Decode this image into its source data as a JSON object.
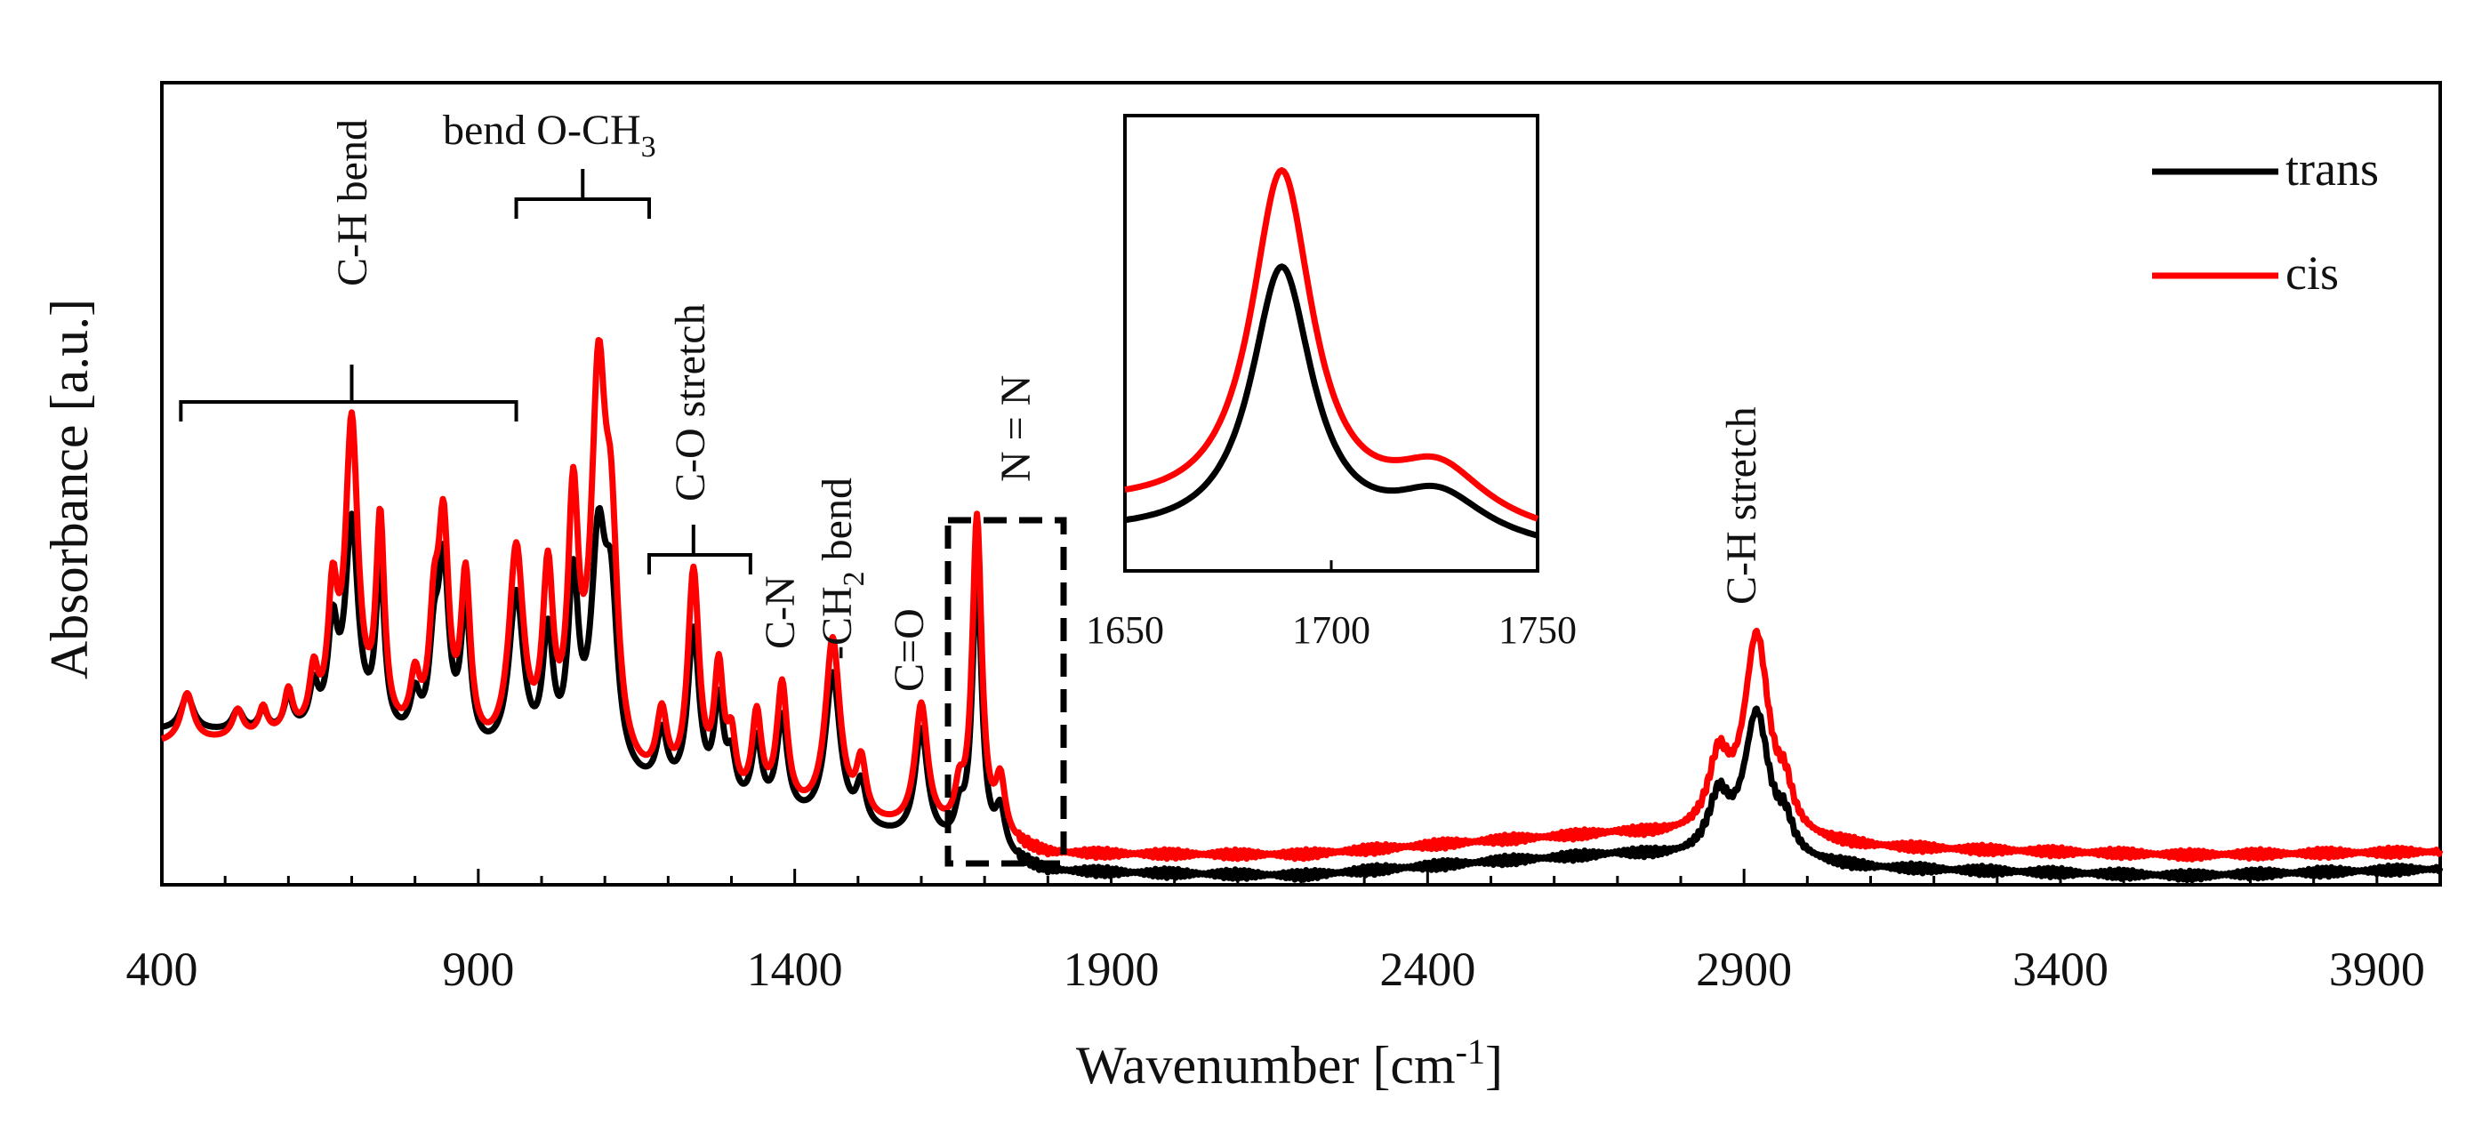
{
  "chart_data": {
    "type": "line",
    "xlabel": "Wavenumber [cm-1]",
    "xlabel_main": "Wavenumber [cm",
    "xlabel_sup": "-1",
    "xlabel_close": "]",
    "ylabel": "Absorbance [a.u.]",
    "xlim": [
      400,
      4000
    ],
    "ylim": [
      0,
      1
    ],
    "x_ticks": [
      400,
      900,
      1400,
      1900,
      2400,
      2900,
      3400,
      3900
    ],
    "x_tick_labels": [
      "400",
      "900",
      "1400",
      "1900",
      "2400",
      "2900",
      "3400",
      "3900"
    ],
    "legend": {
      "position": "top-right",
      "entries": [
        "trans",
        "cis"
      ]
    },
    "series": [
      {
        "name": "trans",
        "color": "#000000",
        "baseline": [
          [
            400,
            0.21
          ],
          [
            700,
            0.2
          ],
          [
            1300,
            0.09
          ],
          [
            1700,
            0.03
          ],
          [
            1800,
            0.005
          ],
          [
            2200,
            0.0
          ],
          [
            2500,
            0.02
          ],
          [
            2700,
            0.03
          ],
          [
            3100,
            0.01
          ],
          [
            3600,
            0.0
          ],
          [
            4000,
            0.01
          ]
        ],
        "peaks": [
          [
            440,
            0.05,
            12
          ],
          [
            520,
            0.03,
            10
          ],
          [
            560,
            0.03,
            8
          ],
          [
            600,
            0.05,
            8
          ],
          [
            640,
            0.06,
            8
          ],
          [
            670,
            0.14,
            9
          ],
          [
            700,
            0.3,
            12
          ],
          [
            745,
            0.24,
            8
          ],
          [
            800,
            0.06,
            9
          ],
          [
            830,
            0.12,
            9
          ],
          [
            845,
            0.25,
            10
          ],
          [
            880,
            0.2,
            9
          ],
          [
            960,
            0.24,
            14
          ],
          [
            1010,
            0.18,
            10
          ],
          [
            1050,
            0.26,
            10
          ],
          [
            1090,
            0.32,
            14
          ],
          [
            1110,
            0.22,
            12
          ],
          [
            1190,
            0.08,
            10
          ],
          [
            1240,
            0.24,
            11
          ],
          [
            1280,
            0.14,
            9
          ],
          [
            1300,
            0.06,
            8
          ],
          [
            1340,
            0.1,
            9
          ],
          [
            1380,
            0.14,
            10
          ],
          [
            1460,
            0.22,
            14
          ],
          [
            1505,
            0.06,
            9
          ],
          [
            1600,
            0.16,
            12
          ],
          [
            1660,
            0.04,
            8
          ],
          [
            1688,
            0.4,
            9
          ],
          [
            1725,
            0.06,
            9
          ],
          [
            2860,
            0.08,
            20
          ],
          [
            2920,
            0.21,
            24
          ],
          [
            2965,
            0.04,
            14
          ]
        ]
      },
      {
        "name": "cis",
        "color": "#ff0000",
        "baseline": [
          [
            400,
            0.19
          ],
          [
            700,
            0.2
          ],
          [
            1300,
            0.09
          ],
          [
            1700,
            0.05
          ],
          [
            1800,
            0.03
          ],
          [
            2200,
            0.03
          ],
          [
            2500,
            0.05
          ],
          [
            2700,
            0.06
          ],
          [
            3100,
            0.04
          ],
          [
            3600,
            0.03
          ],
          [
            4000,
            0.035
          ]
        ],
        "peaks": [
          [
            440,
            0.07,
            12
          ],
          [
            520,
            0.04,
            10
          ],
          [
            560,
            0.04,
            8
          ],
          [
            600,
            0.06,
            8
          ],
          [
            640,
            0.08,
            8
          ],
          [
            670,
            0.18,
            9
          ],
          [
            700,
            0.44,
            12
          ],
          [
            745,
            0.3,
            8
          ],
          [
            800,
            0.08,
            9
          ],
          [
            830,
            0.15,
            9
          ],
          [
            845,
            0.3,
            10
          ],
          [
            880,
            0.24,
            9
          ],
          [
            960,
            0.3,
            14
          ],
          [
            1010,
            0.26,
            10
          ],
          [
            1050,
            0.36,
            10
          ],
          [
            1090,
            0.54,
            14
          ],
          [
            1110,
            0.28,
            12
          ],
          [
            1190,
            0.1,
            10
          ],
          [
            1240,
            0.32,
            11
          ],
          [
            1280,
            0.18,
            9
          ],
          [
            1300,
            0.08,
            8
          ],
          [
            1340,
            0.13,
            9
          ],
          [
            1380,
            0.18,
            10
          ],
          [
            1460,
            0.26,
            14
          ],
          [
            1505,
            0.08,
            9
          ],
          [
            1600,
            0.18,
            12
          ],
          [
            1660,
            0.05,
            8
          ],
          [
            1688,
            0.46,
            9
          ],
          [
            1725,
            0.08,
            9
          ],
          [
            2860,
            0.1,
            20
          ],
          [
            2920,
            0.29,
            24
          ],
          [
            2965,
            0.05,
            14
          ]
        ]
      }
    ],
    "annotations": [
      {
        "text": "C-H bend",
        "x": 700,
        "range": [
          430,
          960
        ]
      },
      {
        "text": "bend O-CH",
        "sub": "3",
        "x": 1065,
        "range": [
          960,
          1170
        ]
      },
      {
        "text": "C-O stretch",
        "x": 1240,
        "range": [
          1170,
          1330
        ]
      },
      {
        "text": "C-N",
        "x": 1380
      },
      {
        "text": "-CH",
        "sub": "2",
        "suffix": " bend",
        "x": 1460
      },
      {
        "text": "C=O",
        "x": 1600
      },
      {
        "text": "N = N",
        "x": 1688,
        "box": [
          1650,
          1820
        ]
      },
      {
        "text": "C-H stretch",
        "x": 2920
      }
    ],
    "inset": {
      "xlim": [
        1650,
        1750
      ],
      "x_ticks": [
        1650,
        1700,
        1750
      ],
      "x_tick_labels": [
        "1650",
        "1700",
        "1750"
      ],
      "series": [
        {
          "name": "trans",
          "color": "#000000",
          "baseline": [
            [
              1650,
              0.06
            ],
            [
              1750,
              0.02
            ]
          ],
          "peaks": [
            [
              1688,
              0.62,
              9
            ],
            [
              1726,
              0.11,
              14
            ]
          ]
        },
        {
          "name": "cis",
          "color": "#ff0000",
          "baseline": [
            [
              1650,
              0.12
            ],
            [
              1750,
              0.05
            ]
          ],
          "peaks": [
            [
              1688,
              0.79,
              9
            ],
            [
              1726,
              0.13,
              14
            ]
          ]
        }
      ]
    }
  }
}
